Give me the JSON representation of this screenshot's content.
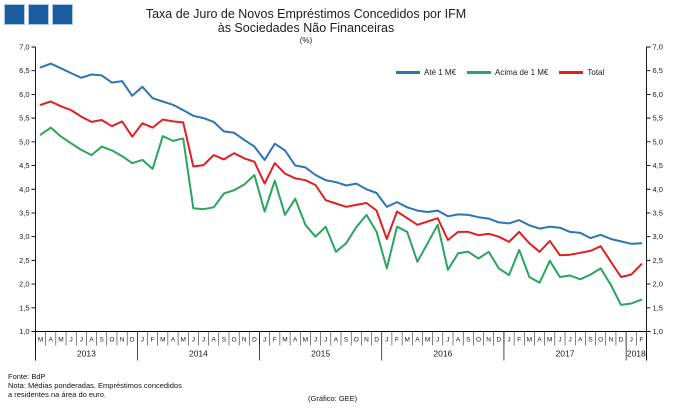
{
  "logo": {
    "square_count": 3,
    "color": "#1b5c9e",
    "border_color": "#a9c7e6"
  },
  "title": {
    "line1": "Taxa de Juro de Novos Empréstimos Concedidos por IFM",
    "line2": "às Sociedades Não Financeiras",
    "subtitle": "(%)"
  },
  "footer": {
    "source": "Fonte: BdP",
    "note_line1": "Nota: Médias ponderadas. Empréstimos concedidos",
    "note_line2": "a residentes na área do euro.",
    "credit": "(Gráfico: GEE)"
  },
  "chart_data": {
    "type": "line",
    "title": "Taxa de Juro de Novos Empréstimos Concedidos por IFM às Sociedades Não Financeiras",
    "subtitle": "(%)",
    "grid": false,
    "legend_position": "top-right",
    "ylim": [
      1.0,
      7.0
    ],
    "ytick_step": 0.5,
    "ytick_labels": [
      "7,0",
      "6,5",
      "6,0",
      "5,5",
      "5,0",
      "4,5",
      "4,0",
      "3,5",
      "3,0",
      "2,5",
      "2,0",
      "1,5",
      "1,0"
    ],
    "x_range_note": "monthly, March 2013 - February 2018",
    "categories": [
      "M",
      "A",
      "M",
      "J",
      "J",
      "A",
      "S",
      "O",
      "N",
      "D",
      "J",
      "F",
      "M",
      "A",
      "M",
      "J",
      "J",
      "A",
      "S",
      "O",
      "N",
      "D",
      "J",
      "F",
      "M",
      "A",
      "M",
      "J",
      "J",
      "A",
      "S",
      "O",
      "N",
      "D",
      "J",
      "F",
      "M",
      "A",
      "M",
      "J",
      "J",
      "A",
      "S",
      "O",
      "N",
      "D",
      "J",
      "F",
      "M",
      "A",
      "M",
      "J",
      "J",
      "A",
      "S",
      "O",
      "N",
      "D",
      "J",
      "F"
    ],
    "year_groups": [
      {
        "label": "2013",
        "months": 10
      },
      {
        "label": "2014",
        "months": 12
      },
      {
        "label": "2015",
        "months": 12
      },
      {
        "label": "2016",
        "months": 12
      },
      {
        "label": "2017",
        "months": 12
      },
      {
        "label": "2018",
        "months": 2
      }
    ],
    "series": [
      {
        "name": "Até 1 M€",
        "color": "#2e74b5",
        "values": [
          6.57,
          6.65,
          6.55,
          6.45,
          6.35,
          6.42,
          6.4,
          6.25,
          6.28,
          5.97,
          6.16,
          5.92,
          5.85,
          5.78,
          5.67,
          5.55,
          5.5,
          5.42,
          5.22,
          5.19,
          5.04,
          4.9,
          4.62,
          4.96,
          4.82,
          4.5,
          4.46,
          4.3,
          4.19,
          4.15,
          4.08,
          4.12,
          4.0,
          3.92,
          3.63,
          3.73,
          3.62,
          3.55,
          3.52,
          3.55,
          3.43,
          3.47,
          3.46,
          3.41,
          3.38,
          3.3,
          3.28,
          3.35,
          3.24,
          3.17,
          3.21,
          3.19,
          3.1,
          3.08,
          2.97,
          3.04,
          2.95,
          2.9,
          2.85,
          2.86
        ]
      },
      {
        "name": "Acima de 1 M€",
        "color": "#2aa45f",
        "values": [
          5.15,
          5.3,
          5.11,
          4.97,
          4.83,
          4.72,
          4.9,
          4.82,
          4.7,
          4.55,
          4.62,
          4.43,
          5.12,
          5.02,
          5.07,
          3.6,
          3.58,
          3.62,
          3.91,
          3.98,
          4.1,
          4.3,
          3.53,
          4.18,
          3.46,
          3.8,
          3.25,
          3.0,
          3.21,
          2.68,
          2.86,
          3.2,
          3.46,
          3.1,
          2.33,
          3.21,
          3.1,
          2.47,
          2.86,
          3.25,
          2.3,
          2.65,
          2.68,
          2.54,
          2.68,
          2.33,
          2.19,
          2.72,
          2.15,
          2.03,
          2.49,
          2.15,
          2.18,
          2.1,
          2.2,
          2.33,
          1.98,
          1.56,
          1.59,
          1.67
        ]
      },
      {
        "name": "Total",
        "color": "#e02020",
        "values": [
          5.78,
          5.85,
          5.75,
          5.67,
          5.53,
          5.42,
          5.46,
          5.33,
          5.43,
          5.11,
          5.39,
          5.3,
          5.47,
          5.43,
          5.41,
          4.48,
          4.51,
          4.72,
          4.63,
          4.76,
          4.65,
          4.58,
          4.12,
          4.55,
          4.33,
          4.23,
          4.19,
          4.09,
          3.77,
          3.7,
          3.63,
          3.67,
          3.71,
          3.55,
          2.95,
          3.53,
          3.39,
          3.25,
          3.32,
          3.39,
          2.93,
          3.1,
          3.1,
          3.03,
          3.06,
          3.0,
          2.89,
          3.1,
          2.86,
          2.68,
          2.91,
          2.61,
          2.62,
          2.66,
          2.7,
          2.8,
          2.47,
          2.15,
          2.2,
          2.42
        ]
      }
    ]
  }
}
